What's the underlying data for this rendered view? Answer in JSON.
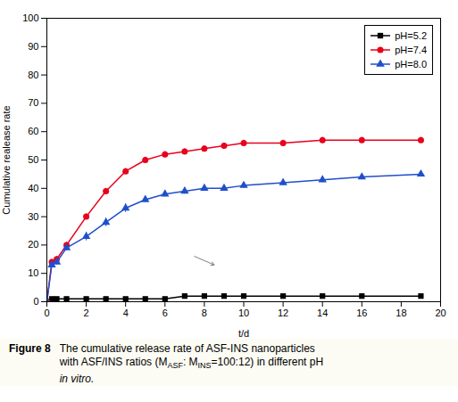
{
  "chart_data": {
    "type": "line",
    "xlabel": "t/d",
    "ylabel": "Cumulative realease rate",
    "xlim": [
      0,
      20
    ],
    "ylim": [
      0,
      100
    ],
    "xticks": [
      0,
      2,
      4,
      6,
      8,
      10,
      12,
      14,
      16,
      18,
      20
    ],
    "yticks": [
      0,
      10,
      20,
      30,
      40,
      50,
      60,
      70,
      80,
      90,
      100
    ],
    "grid": false,
    "legend": "upper right",
    "x": [
      0,
      0.25,
      0.5,
      1,
      2,
      3,
      4,
      5,
      6,
      7,
      8,
      9,
      10,
      12,
      14,
      16,
      19
    ],
    "series": [
      {
        "name": "pH=5.2",
        "color": "#000000",
        "marker": "square",
        "values": [
          0,
          1,
          1,
          1,
          1,
          1,
          1,
          1,
          1,
          2,
          2,
          2,
          2,
          2,
          2,
          2,
          2
        ],
        "yerr": [
          0,
          0.3,
          0.3,
          0.3,
          0.3,
          0.3,
          0.3,
          0.3,
          0.3,
          0.3,
          0.3,
          0.3,
          0.3,
          0.3,
          0.3,
          0.3,
          0.3
        ]
      },
      {
        "name": "pH=7.4",
        "color": "#e8001c",
        "marker": "circle",
        "values": [
          0,
          14,
          15,
          20,
          30,
          39,
          46,
          50,
          52,
          53,
          54,
          55,
          56,
          56,
          57,
          57,
          57
        ],
        "yerr": [
          0,
          1,
          1,
          1,
          1,
          1,
          1,
          1,
          1,
          1,
          1,
          1,
          1,
          1,
          1,
          1,
          1
        ]
      },
      {
        "name": "pH=8.0",
        "color": "#1f4fcc",
        "marker": "triangle",
        "values": [
          0,
          13,
          14,
          19,
          23,
          28,
          33,
          36,
          38,
          39,
          40,
          40,
          41,
          42,
          43,
          44,
          45
        ],
        "yerr": [
          0,
          1,
          1,
          1,
          1.5,
          1.5,
          1.5,
          1,
          1,
          1,
          1,
          1,
          1,
          1,
          1,
          1,
          1
        ]
      }
    ],
    "arrows": [
      {
        "from": [
          7.5,
          16
        ],
        "to": [
          8.5,
          13
        ]
      }
    ],
    "caption_label": "Figure 8",
    "caption": [
      [
        {
          "text": "The cumulative release rate of ASF-INS nanoparticles"
        }
      ],
      [
        {
          "text": "with ASF/INS ratios (M"
        },
        {
          "text": "ASF",
          "sub": true
        },
        {
          "text": ": M"
        },
        {
          "text": "INS",
          "sub": true
        },
        {
          "text": "=100:12) in different pH"
        }
      ],
      [
        {
          "text": "in vitro.",
          "italic": true
        }
      ]
    ]
  }
}
